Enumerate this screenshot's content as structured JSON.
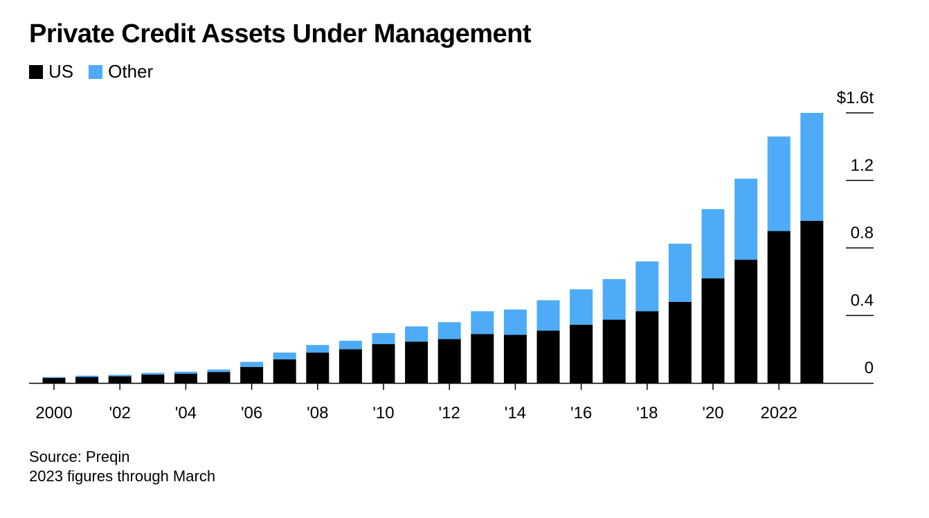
{
  "chart_data": {
    "type": "bar",
    "stacked": true,
    "title": "Private Credit Assets Under Management",
    "categories": [
      "2000",
      "2001",
      "2002",
      "2003",
      "2004",
      "2005",
      "2006",
      "2007",
      "2008",
      "2009",
      "2010",
      "2011",
      "2012",
      "2013",
      "2014",
      "2015",
      "2016",
      "2017",
      "2018",
      "2019",
      "2020",
      "2021",
      "2022",
      "2023"
    ],
    "series": [
      {
        "name": "US",
        "color": "#000000",
        "values": [
          0.03,
          0.035,
          0.04,
          0.05,
          0.055,
          0.065,
          0.095,
          0.14,
          0.18,
          0.2,
          0.23,
          0.245,
          0.26,
          0.29,
          0.285,
          0.31,
          0.345,
          0.375,
          0.425,
          0.48,
          0.62,
          0.73,
          0.9,
          0.96
        ]
      },
      {
        "name": "Other",
        "color": "#4dabf7",
        "values": [
          0.005,
          0.008,
          0.008,
          0.01,
          0.012,
          0.015,
          0.03,
          0.04,
          0.045,
          0.05,
          0.065,
          0.09,
          0.1,
          0.135,
          0.15,
          0.18,
          0.21,
          0.24,
          0.295,
          0.345,
          0.41,
          0.48,
          0.56,
          0.64
        ]
      }
    ],
    "x_tick_labels": [
      {
        "index": 0,
        "label": "2000"
      },
      {
        "index": 2,
        "label": "'02"
      },
      {
        "index": 4,
        "label": "'04"
      },
      {
        "index": 6,
        "label": "'06"
      },
      {
        "index": 8,
        "label": "'08"
      },
      {
        "index": 10,
        "label": "'10"
      },
      {
        "index": 12,
        "label": "'12"
      },
      {
        "index": 14,
        "label": "'14"
      },
      {
        "index": 16,
        "label": "'16"
      },
      {
        "index": 18,
        "label": "'18"
      },
      {
        "index": 20,
        "label": "'20"
      },
      {
        "index": 22,
        "label": "2022"
      }
    ],
    "y_ticks": [
      {
        "value": 0,
        "label": "0"
      },
      {
        "value": 0.4,
        "label": "0.4"
      },
      {
        "value": 0.8,
        "label": "0.8"
      },
      {
        "value": 1.2,
        "label": "1.2"
      },
      {
        "value": 1.6,
        "label": "$1.6t"
      }
    ],
    "ylim": [
      0,
      1.6
    ],
    "y_axis_position": "right",
    "grid": false,
    "legend_position": "top-left",
    "source": "Source: Preqin",
    "note": "2023 figures through March"
  }
}
